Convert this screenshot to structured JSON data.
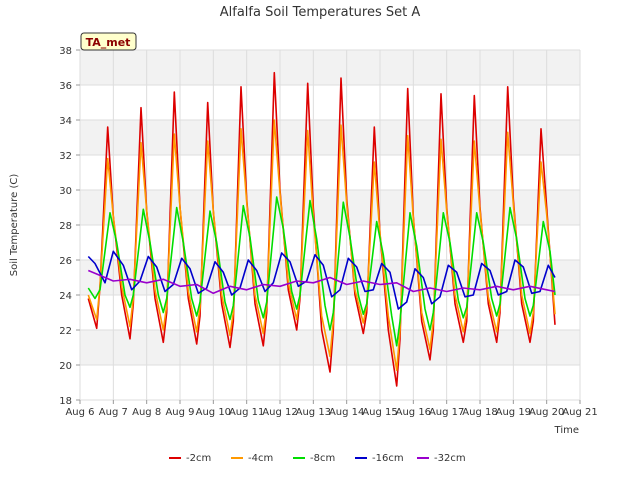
{
  "chart_data": {
    "type": "line",
    "title": "Alfalfa Soil Temperatures Set A",
    "xlabel": "Time",
    "ylabel": "Soil Temperature (C)",
    "badge": "TA_met",
    "ylim": [
      18,
      38
    ],
    "yticks": [
      18,
      20,
      22,
      24,
      26,
      28,
      30,
      32,
      34,
      36,
      38
    ],
    "xlim": [
      0,
      15
    ],
    "xticks": [
      0,
      1,
      2,
      3,
      4,
      5,
      6,
      7,
      8,
      9,
      10,
      11,
      12,
      13,
      14,
      15
    ],
    "xtick_labels": [
      "Aug 6",
      "Aug 7",
      "Aug 8",
      "Aug 9",
      "Aug 10",
      "Aug 11",
      "Aug 12",
      "Aug 13",
      "Aug 14",
      "Aug 15",
      "Aug 16",
      "Aug 17",
      "Aug 18",
      "Aug 19",
      "Aug 20",
      "Aug 21"
    ],
    "x_unit": "days from Aug 6",
    "grid": true,
    "legend_position": "bottom",
    "series": [
      {
        "name": "-2cm",
        "color": "#dd0000",
        "x": [
          0.25,
          0.5,
          0.6,
          0.83,
          1.0,
          1.25,
          1.5,
          1.6,
          1.83,
          2.0,
          2.25,
          2.5,
          2.6,
          2.83,
          3.0,
          3.25,
          3.5,
          3.6,
          3.83,
          4.0,
          4.25,
          4.5,
          4.6,
          4.83,
          5.0,
          5.25,
          5.5,
          5.6,
          5.83,
          6.0,
          6.25,
          6.5,
          6.6,
          6.83,
          7.0,
          7.25,
          7.5,
          7.6,
          7.83,
          8.0,
          8.25,
          8.5,
          8.6,
          8.83,
          9.0,
          9.25,
          9.5,
          9.6,
          9.83,
          10.0,
          10.25,
          10.5,
          10.6,
          10.83,
          11.0,
          11.25,
          11.5,
          11.6,
          11.83,
          12.0,
          12.25,
          12.5,
          12.6,
          12.83,
          13.0,
          13.25,
          13.5,
          13.6,
          13.83,
          14.0,
          14.25
        ],
        "y": [
          23.8,
          22.1,
          24.5,
          33.6,
          28.5,
          24.0,
          21.5,
          23.5,
          34.7,
          28.8,
          23.8,
          21.3,
          23.0,
          35.6,
          29.0,
          23.8,
          21.2,
          22.8,
          35.0,
          28.8,
          23.5,
          21.0,
          22.5,
          35.9,
          29.5,
          23.5,
          21.1,
          23.0,
          36.7,
          30.0,
          24.3,
          22.0,
          23.8,
          36.1,
          29.0,
          22.0,
          19.6,
          22.0,
          36.4,
          29.5,
          24.0,
          21.8,
          23.0,
          33.6,
          27.5,
          22.0,
          18.8,
          21.5,
          35.8,
          28.5,
          22.5,
          20.3,
          22.0,
          35.5,
          29.0,
          23.5,
          21.3,
          22.5,
          35.4,
          29.0,
          23.5,
          21.3,
          23.0,
          35.9,
          29.5,
          23.5,
          21.3,
          22.5,
          33.5,
          29.0,
          22.3
        ]
      },
      {
        "name": "-4cm",
        "color": "#ff9900",
        "x": [
          0.25,
          0.5,
          0.6,
          0.83,
          1.0,
          1.25,
          1.5,
          1.6,
          1.83,
          2.0,
          2.25,
          2.5,
          2.6,
          2.83,
          3.0,
          3.25,
          3.5,
          3.6,
          3.83,
          4.0,
          4.25,
          4.5,
          4.6,
          4.83,
          5.0,
          5.25,
          5.5,
          5.6,
          5.83,
          6.0,
          6.25,
          6.5,
          6.6,
          6.83,
          7.0,
          7.25,
          7.5,
          7.6,
          7.83,
          8.0,
          8.25,
          8.5,
          8.6,
          8.83,
          9.0,
          9.25,
          9.5,
          9.6,
          9.83,
          10.0,
          10.25,
          10.5,
          10.6,
          10.83,
          11.0,
          11.25,
          11.5,
          11.6,
          11.83,
          12.0,
          12.25,
          12.5,
          12.6,
          12.83,
          13.0,
          13.25,
          13.5,
          13.6,
          13.83,
          14.0,
          14.25
        ],
        "y": [
          24.0,
          22.6,
          24.5,
          31.8,
          28.5,
          24.5,
          22.2,
          23.8,
          32.7,
          28.8,
          24.3,
          22.0,
          23.4,
          33.2,
          29.0,
          24.2,
          21.9,
          23.3,
          32.8,
          28.8,
          24.0,
          21.7,
          23.0,
          33.5,
          29.3,
          24.0,
          21.8,
          23.4,
          34.0,
          29.8,
          24.7,
          22.6,
          24.0,
          33.4,
          28.5,
          22.8,
          20.5,
          22.5,
          33.7,
          29.2,
          24.3,
          22.4,
          23.4,
          31.6,
          27.5,
          22.8,
          19.7,
          22.0,
          33.1,
          28.4,
          23.0,
          20.9,
          22.5,
          32.9,
          28.8,
          24.0,
          21.9,
          23.0,
          32.8,
          28.8,
          23.9,
          21.9,
          23.3,
          33.3,
          29.2,
          24.0,
          21.8,
          23.0,
          31.6,
          28.6,
          22.9
        ]
      },
      {
        "name": "-8cm",
        "color": "#00dd00",
        "x": [
          0.25,
          0.45,
          0.6,
          0.9,
          1.1,
          1.35,
          1.5,
          1.6,
          1.9,
          2.1,
          2.35,
          2.5,
          2.6,
          2.9,
          3.1,
          3.35,
          3.5,
          3.6,
          3.9,
          4.1,
          4.35,
          4.5,
          4.6,
          4.9,
          5.1,
          5.35,
          5.5,
          5.6,
          5.9,
          6.1,
          6.35,
          6.5,
          6.6,
          6.9,
          7.1,
          7.35,
          7.5,
          7.6,
          7.9,
          8.1,
          8.35,
          8.5,
          8.6,
          8.9,
          9.1,
          9.35,
          9.5,
          9.6,
          9.9,
          10.1,
          10.35,
          10.5,
          10.6,
          10.9,
          11.1,
          11.35,
          11.5,
          11.6,
          11.9,
          12.1,
          12.35,
          12.5,
          12.6,
          12.9,
          13.1,
          13.35,
          13.5,
          13.6,
          13.9,
          14.1,
          14.25
        ],
        "y": [
          24.4,
          23.8,
          24.3,
          28.7,
          27.0,
          24.0,
          23.3,
          24.0,
          28.9,
          27.0,
          24.0,
          23.0,
          23.8,
          29.0,
          27.0,
          23.8,
          22.8,
          23.6,
          28.8,
          27.0,
          23.6,
          22.6,
          23.4,
          29.1,
          27.3,
          23.7,
          22.7,
          23.6,
          29.6,
          27.8,
          24.2,
          23.2,
          24.0,
          29.4,
          27.2,
          23.4,
          22.0,
          23.0,
          29.3,
          27.3,
          24.0,
          22.9,
          23.5,
          28.2,
          26.3,
          22.8,
          21.1,
          22.5,
          28.7,
          26.8,
          23.2,
          22.0,
          23.0,
          28.7,
          27.0,
          23.7,
          22.7,
          23.3,
          28.7,
          27.0,
          23.8,
          22.8,
          23.5,
          29.0,
          27.2,
          23.8,
          22.8,
          23.4,
          28.2,
          26.5,
          24.0
        ]
      },
      {
        "name": "-16cm",
        "color": "#0000cc",
        "x": [
          0.25,
          0.45,
          0.75,
          1.0,
          1.3,
          1.55,
          1.8,
          2.05,
          2.3,
          2.55,
          2.8,
          3.05,
          3.3,
          3.55,
          3.8,
          4.05,
          4.3,
          4.55,
          4.8,
          5.05,
          5.3,
          5.55,
          5.8,
          6.05,
          6.3,
          6.55,
          6.8,
          7.05,
          7.3,
          7.55,
          7.8,
          8.05,
          8.3,
          8.55,
          8.8,
          9.05,
          9.3,
          9.55,
          9.8,
          10.05,
          10.3,
          10.55,
          10.8,
          11.05,
          11.3,
          11.55,
          11.8,
          12.05,
          12.3,
          12.55,
          12.8,
          13.05,
          13.3,
          13.55,
          13.8,
          14.05,
          14.25
        ],
        "y": [
          26.2,
          25.8,
          24.7,
          26.5,
          25.7,
          24.3,
          24.8,
          26.2,
          25.6,
          24.2,
          24.6,
          26.1,
          25.5,
          24.1,
          24.4,
          25.9,
          25.3,
          24.0,
          24.4,
          26.0,
          25.4,
          24.2,
          24.7,
          26.4,
          25.9,
          24.5,
          24.8,
          26.3,
          25.7,
          23.9,
          24.3,
          26.1,
          25.6,
          24.2,
          24.3,
          25.8,
          25.3,
          23.2,
          23.6,
          25.5,
          25.0,
          23.5,
          23.9,
          25.7,
          25.3,
          23.9,
          24.0,
          25.8,
          25.4,
          24.0,
          24.2,
          26.0,
          25.6,
          24.1,
          24.2,
          25.7,
          25.0
        ]
      },
      {
        "name": "-32cm",
        "color": "#9900cc",
        "x": [
          0.25,
          0.5,
          1.0,
          1.5,
          2.0,
          2.5,
          3.0,
          3.5,
          4.0,
          4.5,
          5.0,
          5.5,
          6.0,
          6.5,
          7.0,
          7.5,
          8.0,
          8.5,
          9.0,
          9.5,
          10.0,
          10.5,
          11.0,
          11.5,
          12.0,
          12.5,
          13.0,
          13.5,
          14.0,
          14.25
        ],
        "y": [
          25.4,
          25.2,
          24.8,
          24.9,
          24.7,
          24.9,
          24.5,
          24.6,
          24.1,
          24.5,
          24.3,
          24.6,
          24.5,
          24.8,
          24.7,
          25.0,
          24.6,
          24.8,
          24.6,
          24.7,
          24.2,
          24.4,
          24.2,
          24.4,
          24.3,
          24.5,
          24.3,
          24.5,
          24.3,
          24.2
        ]
      }
    ]
  }
}
